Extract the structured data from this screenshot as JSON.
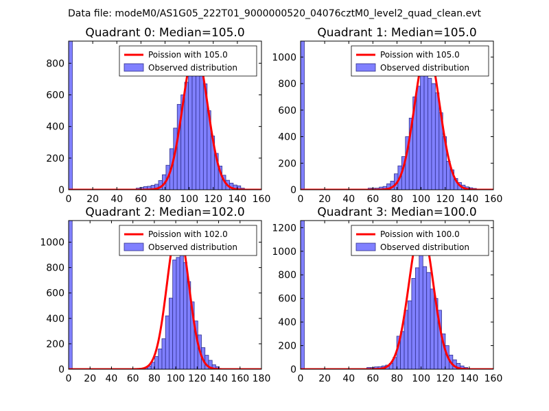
{
  "figure_title": "Data file: modeM0/AS1G05_222T01_9000000520_04076cztM0_level2_quad_clean.evt",
  "colors": {
    "bar_fill": "#8080ff",
    "bar_edge": "#2e2e8a",
    "poisson_line": "#ff0000",
    "axes": "#000000"
  },
  "chart_data": [
    {
      "type": "bar",
      "title": "Quadrant 0: Median=105.0",
      "median": 105.0,
      "xlim": [
        0,
        160
      ],
      "ylim": [
        0,
        940
      ],
      "xticks": [
        0,
        20,
        40,
        60,
        80,
        100,
        120,
        140,
        160
      ],
      "yticks": [
        0,
        200,
        400,
        600,
        800
      ],
      "bin_width": 3.1,
      "bars": [
        {
          "x": 0,
          "h": 940
        },
        {
          "x": 56,
          "h": 10
        },
        {
          "x": 59.1,
          "h": 15
        },
        {
          "x": 62.2,
          "h": 20
        },
        {
          "x": 65.3,
          "h": 22
        },
        {
          "x": 68.4,
          "h": 28
        },
        {
          "x": 71.5,
          "h": 35
        },
        {
          "x": 74.6,
          "h": 58
        },
        {
          "x": 77.7,
          "h": 95
        },
        {
          "x": 80.8,
          "h": 155
        },
        {
          "x": 83.9,
          "h": 260
        },
        {
          "x": 87.0,
          "h": 390
        },
        {
          "x": 90.1,
          "h": 540
        },
        {
          "x": 93.2,
          "h": 600
        },
        {
          "x": 96.3,
          "h": 680
        },
        {
          "x": 99.4,
          "h": 790
        },
        {
          "x": 102.5,
          "h": 800
        },
        {
          "x": 105.6,
          "h": 840
        },
        {
          "x": 108.7,
          "h": 800
        },
        {
          "x": 111.8,
          "h": 670
        },
        {
          "x": 114.9,
          "h": 500
        },
        {
          "x": 118.0,
          "h": 340
        },
        {
          "x": 121.1,
          "h": 230
        },
        {
          "x": 124.2,
          "h": 150
        },
        {
          "x": 127.3,
          "h": 92
        },
        {
          "x": 130.4,
          "h": 60
        },
        {
          "x": 133.5,
          "h": 42
        },
        {
          "x": 136.6,
          "h": 30
        },
        {
          "x": 139.7,
          "h": 25
        },
        {
          "x": 142.8,
          "h": 10
        }
      ],
      "poisson": {
        "lambda": 105.0,
        "peak": 890
      },
      "legend": [
        "Poission with 105.0",
        "Observed distribution"
      ]
    },
    {
      "type": "bar",
      "title": "Quadrant 1: Median=105.0",
      "median": 105.0,
      "xlim": [
        0,
        160
      ],
      "ylim": [
        0,
        1120
      ],
      "xticks": [
        0,
        20,
        40,
        60,
        80,
        100,
        120,
        140,
        160
      ],
      "yticks": [
        0,
        200,
        400,
        600,
        800,
        1000
      ],
      "bin_width": 3.1,
      "bars": [
        {
          "x": 0,
          "h": 1120
        },
        {
          "x": 56,
          "h": 12
        },
        {
          "x": 59.1,
          "h": 12
        },
        {
          "x": 62.2,
          "h": 12
        },
        {
          "x": 65.3,
          "h": 20
        },
        {
          "x": 68.4,
          "h": 25
        },
        {
          "x": 71.5,
          "h": 45
        },
        {
          "x": 74.6,
          "h": 65
        },
        {
          "x": 77.7,
          "h": 120
        },
        {
          "x": 80.8,
          "h": 180
        },
        {
          "x": 83.9,
          "h": 250
        },
        {
          "x": 87.0,
          "h": 400
        },
        {
          "x": 90.1,
          "h": 540
        },
        {
          "x": 93.2,
          "h": 700
        },
        {
          "x": 96.3,
          "h": 780
        },
        {
          "x": 99.4,
          "h": 920
        },
        {
          "x": 102.5,
          "h": 870
        },
        {
          "x": 105.6,
          "h": 840
        },
        {
          "x": 108.7,
          "h": 800
        },
        {
          "x": 111.8,
          "h": 730
        },
        {
          "x": 114.9,
          "h": 580
        },
        {
          "x": 118.0,
          "h": 400
        },
        {
          "x": 121.1,
          "h": 215
        },
        {
          "x": 124.2,
          "h": 150
        },
        {
          "x": 127.3,
          "h": 85
        },
        {
          "x": 130.4,
          "h": 55
        },
        {
          "x": 133.5,
          "h": 35
        },
        {
          "x": 136.6,
          "h": 22
        },
        {
          "x": 139.7,
          "h": 15
        },
        {
          "x": 142.8,
          "h": 10
        }
      ],
      "poisson": {
        "lambda": 105.0,
        "peak": 1070
      },
      "legend": [
        "Poission with 105.0",
        "Observed distribution"
      ]
    },
    {
      "type": "bar",
      "title": "Quadrant 2: Median=102.0",
      "median": 102.0,
      "xlim": [
        0,
        180
      ],
      "ylim": [
        0,
        1170
      ],
      "xticks": [
        0,
        20,
        40,
        60,
        80,
        100,
        120,
        140,
        160,
        180
      ],
      "yticks": [
        0,
        200,
        400,
        600,
        800,
        1000
      ],
      "bin_width": 3.35,
      "bars": [
        {
          "x": 0,
          "h": 1170
        },
        {
          "x": 67,
          "h": 8
        },
        {
          "x": 70.35,
          "h": 12
        },
        {
          "x": 73.7,
          "h": 25
        },
        {
          "x": 77.05,
          "h": 55
        },
        {
          "x": 80.4,
          "h": 100
        },
        {
          "x": 83.75,
          "h": 160
        },
        {
          "x": 87.1,
          "h": 240
        },
        {
          "x": 90.45,
          "h": 420
        },
        {
          "x": 93.8,
          "h": 560
        },
        {
          "x": 97.15,
          "h": 860
        },
        {
          "x": 100.5,
          "h": 880
        },
        {
          "x": 103.85,
          "h": 900
        },
        {
          "x": 107.2,
          "h": 840
        },
        {
          "x": 110.55,
          "h": 690
        },
        {
          "x": 113.9,
          "h": 530
        },
        {
          "x": 117.25,
          "h": 380
        },
        {
          "x": 120.6,
          "h": 270
        },
        {
          "x": 123.95,
          "h": 170
        },
        {
          "x": 127.3,
          "h": 110
        },
        {
          "x": 130.65,
          "h": 70
        },
        {
          "x": 134.0,
          "h": 35
        },
        {
          "x": 137.35,
          "h": 20
        }
      ],
      "poisson": {
        "lambda": 102.0,
        "peak": 1120
      },
      "legend": [
        "Poission with 102.0",
        "Observed distribution"
      ]
    },
    {
      "type": "bar",
      "title": "Quadrant 3: Median=100.0",
      "median": 100.0,
      "xlim": [
        0,
        160
      ],
      "ylim": [
        0,
        1260
      ],
      "xticks": [
        0,
        20,
        40,
        60,
        80,
        100,
        120,
        140,
        160
      ],
      "yticks": [
        0,
        200,
        400,
        600,
        800,
        1000,
        1200
      ],
      "bin_width": 3.1,
      "bars": [
        {
          "x": 0,
          "h": 1260
        },
        {
          "x": 55,
          "h": 15
        },
        {
          "x": 58.1,
          "h": 15
        },
        {
          "x": 61.2,
          "h": 20
        },
        {
          "x": 64.3,
          "h": 22
        },
        {
          "x": 67.4,
          "h": 28
        },
        {
          "x": 70.5,
          "h": 35
        },
        {
          "x": 73.6,
          "h": 50
        },
        {
          "x": 76.7,
          "h": 100
        },
        {
          "x": 79.8,
          "h": 280
        },
        {
          "x": 82.9,
          "h": 320
        },
        {
          "x": 86.0,
          "h": 500
        },
        {
          "x": 89.1,
          "h": 580
        },
        {
          "x": 92.2,
          "h": 770
        },
        {
          "x": 95.3,
          "h": 860
        },
        {
          "x": 98.4,
          "h": 1080
        },
        {
          "x": 101.5,
          "h": 870
        },
        {
          "x": 104.6,
          "h": 820
        },
        {
          "x": 107.7,
          "h": 680
        },
        {
          "x": 110.8,
          "h": 600
        },
        {
          "x": 113.9,
          "h": 500
        },
        {
          "x": 117.0,
          "h": 300
        },
        {
          "x": 120.1,
          "h": 200
        },
        {
          "x": 123.2,
          "h": 120
        },
        {
          "x": 126.3,
          "h": 80
        },
        {
          "x": 129.4,
          "h": 50
        },
        {
          "x": 132.5,
          "h": 28
        },
        {
          "x": 135.6,
          "h": 15
        }
      ],
      "poisson": {
        "lambda": 100.0,
        "peak": 1210
      },
      "legend": [
        "Poission with 100.0",
        "Observed distribution"
      ]
    }
  ]
}
